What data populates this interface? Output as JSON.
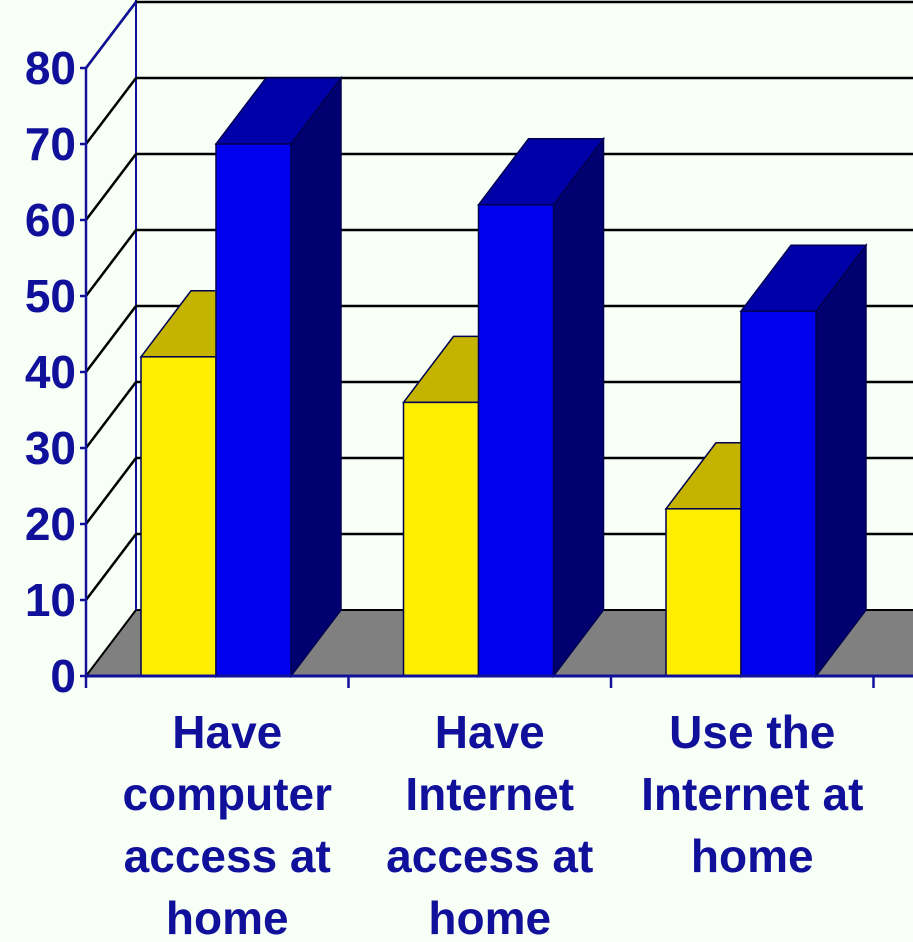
{
  "chart_data": {
    "type": "bar",
    "style": "3d-clustered-column",
    "categories": [
      [
        "Have",
        "computer",
        "access at",
        "home"
      ],
      [
        "Have",
        "Internet",
        "access at",
        "home"
      ],
      [
        "Use the",
        "Internet at",
        "home"
      ]
    ],
    "series": [
      {
        "values": [
          42,
          36,
          22
        ]
      },
      {
        "values": [
          70,
          62,
          48
        ]
      }
    ],
    "ylim": [
      0,
      80
    ],
    "yticks": [
      "0",
      "10",
      "20",
      "30",
      "40",
      "50",
      "60",
      "70",
      "80"
    ],
    "grid": true,
    "legend": "none",
    "colors": {
      "background": "#f7fff7",
      "series_0_front": "#ffee00",
      "series_0_top": "#c4b400",
      "series_1_front": "#0000ee",
      "series_1_top": "#0000a8",
      "series_1_side": "#000070",
      "floor": "#808080",
      "text": "#10109a",
      "axis": "#10109a",
      "gridline": "#000000"
    }
  }
}
